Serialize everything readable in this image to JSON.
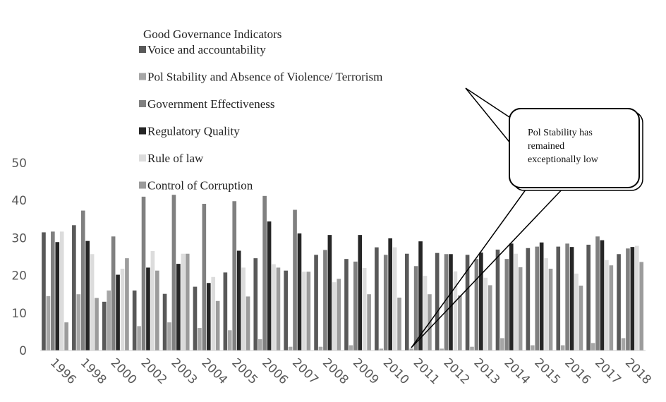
{
  "chart_data": {
    "type": "bar",
    "legend_title": "Good Governance Indicators",
    "annotation": [
      "Pol Stability has",
      "remained",
      "exceptionally low"
    ],
    "categories": [
      "1996",
      "1998",
      "2000",
      "2002",
      "2003",
      "2004",
      "2005",
      "2006",
      "2007",
      "2008",
      "2009",
      "2010",
      "2011",
      "2012",
      "2013",
      "2014",
      "2015",
      "2016",
      "2017",
      "2018"
    ],
    "series": [
      {
        "name": "Voice and accountability",
        "color": "#595959",
        "values": [
          31.5,
          33.4,
          13,
          16,
          15.1,
          17,
          20.8,
          24.6,
          21.3,
          25.5,
          24.4,
          27.5,
          25.8,
          26,
          25.5,
          26.9,
          27.3,
          27.7,
          28.2,
          25.7
        ]
      },
      {
        "name": "Pol Stability and Absence of Violence/ Terrorism",
        "color": "#a6a6a6",
        "values": [
          14.5,
          15,
          16,
          6.5,
          7.5,
          6,
          5.4,
          3,
          1,
          1,
          1.4,
          0.5,
          0.5,
          0.5,
          1,
          3.3,
          1.4,
          1.4,
          2,
          3.3
        ]
      },
      {
        "name": "Government Effectiveness",
        "color": "#808080",
        "values": [
          31.7,
          37.3,
          30.4,
          41,
          41.5,
          39.1,
          39.8,
          41.2,
          37.5,
          26.8,
          23.7,
          25.5,
          22.5,
          25.7,
          24.4,
          24.4,
          27.7,
          28.5,
          30.4,
          27.2
        ]
      },
      {
        "name": "Regulatory Quality",
        "color": "#262626",
        "values": [
          28.9,
          29.2,
          20.2,
          22.1,
          23.1,
          18,
          26.6,
          34.4,
          31.2,
          30.8,
          30.8,
          29.9,
          29.1,
          25.7,
          26.1,
          28.5,
          28.8,
          27.6,
          29.4,
          27.6
        ]
      },
      {
        "name": "Rule of law",
        "color": "#dcdcdc",
        "values": [
          31.7,
          25.7,
          21.8,
          26.5,
          25.8,
          19.6,
          22.1,
          23,
          21,
          18.2,
          22,
          27.5,
          19.9,
          21.1,
          19.4,
          25.8,
          24.6,
          20.5,
          24.1,
          27.9
        ]
      },
      {
        "name": "Control of Corruption",
        "color": "#9c9c9c",
        "values": [
          7.5,
          14,
          24.6,
          21.3,
          25.8,
          13.2,
          14.4,
          22.1,
          21,
          19.1,
          15,
          14.1,
          15,
          14.7,
          17.4,
          22.2,
          21.8,
          17.3,
          22.7,
          23.6
        ]
      }
    ],
    "ylim": [
      0,
      50
    ],
    "yticks": [
      0,
      10,
      20,
      30,
      40,
      50
    ],
    "grid": false
  }
}
